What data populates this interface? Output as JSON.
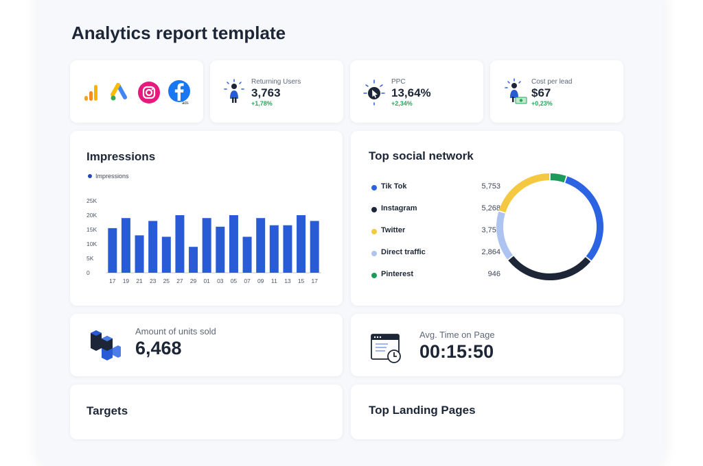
{
  "page": {
    "title": "Analytics report template"
  },
  "logos": [
    "bar-chart-logo",
    "google-ads-logo",
    "instagram-logo",
    "facebook-ads-logo"
  ],
  "facebook_sub": "ads",
  "kpis": [
    {
      "label": "Returning Users",
      "value": "3,763",
      "delta": "+1,78%",
      "icon": "person-icon"
    },
    {
      "label": "PPC",
      "value": "13,64%",
      "delta": "+2,34%",
      "icon": "cursor-click-icon"
    },
    {
      "label": "Cost per lead",
      "value": "$67",
      "delta": "+0,23%",
      "icon": "person-money-icon"
    }
  ],
  "impressions": {
    "title": "Impressions",
    "legend": "Impressions"
  },
  "chart_data": {
    "type": "bar",
    "categories": [
      "17",
      "19",
      "21",
      "23",
      "25",
      "27",
      "29",
      "01",
      "03",
      "05",
      "07",
      "09",
      "11",
      "13",
      "15",
      "17"
    ],
    "series": [
      {
        "name": "Impressions",
        "values": [
          15500,
          19000,
          13000,
          18000,
          12500,
          20000,
          9000,
          19000,
          16000,
          20000,
          12500,
          19000,
          16500,
          16500,
          20000,
          18000
        ]
      }
    ],
    "title": "Impressions",
    "ylim": [
      0,
      25000
    ],
    "yticks": [
      "0",
      "5K",
      "10K",
      "15K",
      "20K",
      "25K"
    ],
    "ytick_values": [
      0,
      5000,
      10000,
      15000,
      20000,
      25000
    ],
    "grid": false,
    "legend": "top-left",
    "color": "#2a5bd7"
  },
  "social": {
    "title": "Top social network",
    "items": [
      {
        "name": "Tik Tok",
        "value": "5,753",
        "num": 5753,
        "color": "#2b63e3"
      },
      {
        "name": "Instagram",
        "value": "5,268",
        "num": 5268,
        "color": "#1c2636"
      },
      {
        "name": "Twitter",
        "value": "3,753",
        "num": 3753,
        "color": "#f5c842"
      },
      {
        "name": "Direct traffic",
        "value": "2,864",
        "num": 2864,
        "color": "#aec4f0"
      },
      {
        "name": "Pinterest",
        "value": "946",
        "num": 946,
        "color": "#1a9b5c"
      }
    ]
  },
  "units": {
    "label": "Amount of units sold",
    "value": "6,468"
  },
  "time": {
    "label": "Avg. Time on Page",
    "value": "00:15:50"
  },
  "targets": {
    "title": "Targets"
  },
  "landing": {
    "title": "Top Landing Pages"
  }
}
